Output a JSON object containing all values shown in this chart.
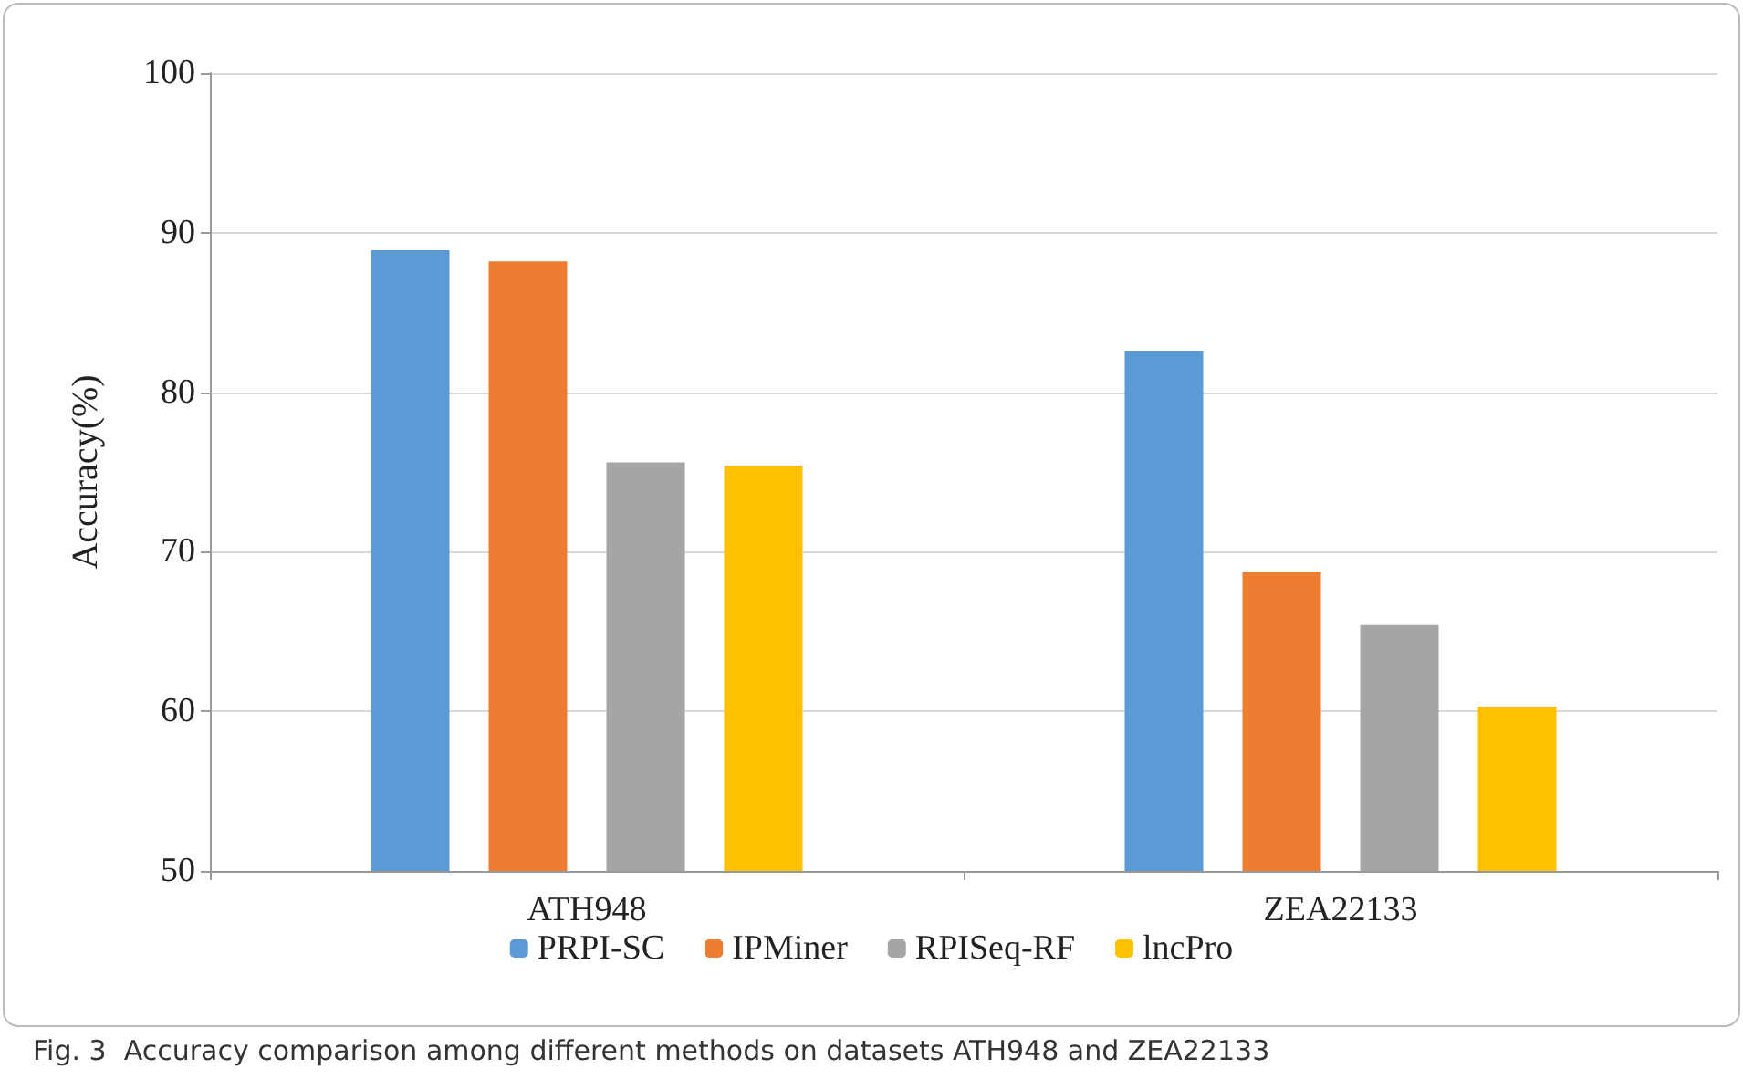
{
  "chart_data": {
    "type": "bar",
    "ylabel": "Accuracy(%)",
    "categories": [
      "ATH948",
      "ZEA22133"
    ],
    "series": [
      {
        "name": "PRPI-SC",
        "color": "#5b9bd5",
        "values": [
          88.9,
          82.6
        ]
      },
      {
        "name": "IPMiner",
        "color": "#ed7d31",
        "values": [
          88.2,
          68.7
        ]
      },
      {
        "name": "RPISeq-RF",
        "color": "#a5a5a5",
        "values": [
          75.6,
          65.4
        ]
      },
      {
        "name": "lncPro",
        "color": "#ffc000",
        "values": [
          75.4,
          60.3
        ]
      }
    ],
    "ylim": [
      50,
      100
    ],
    "yticks": [
      50,
      60,
      70,
      80,
      90,
      100
    ],
    "grid": "y",
    "legend": "bottom",
    "annotations": [
      "Fig. 3  Accuracy comparison among different methods on datasets ATH948 and ZEA22133"
    ]
  }
}
